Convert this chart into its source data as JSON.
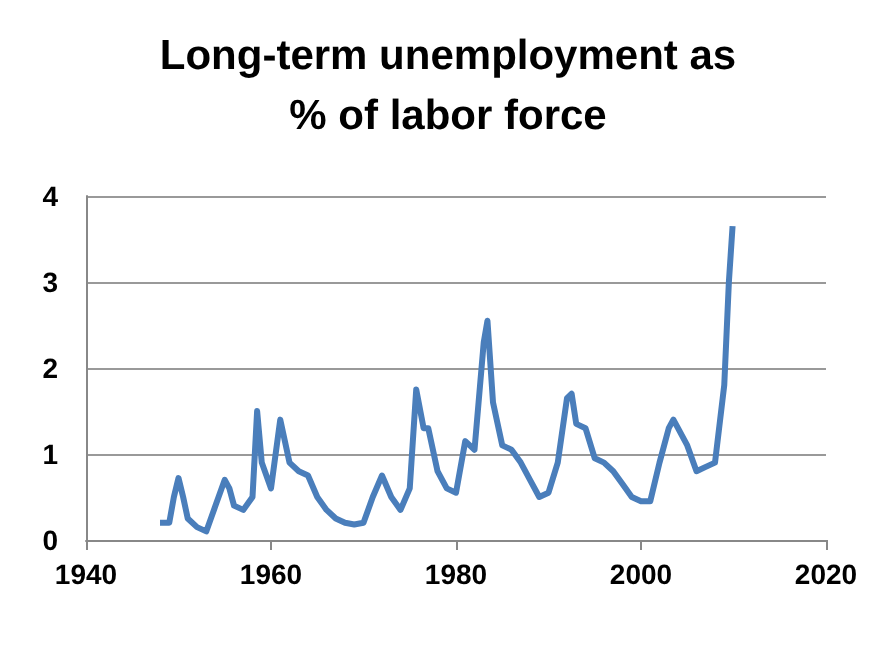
{
  "chart_data": {
    "type": "line",
    "title": "Long-term unemployment as\n% of labor force",
    "x": [
      1948,
      1949,
      1949.5,
      1950,
      1950.5,
      1951,
      1952,
      1953,
      1954,
      1955,
      1955.5,
      1956,
      1957,
      1958,
      1958.5,
      1959,
      1960,
      1961,
      1962,
      1963,
      1964,
      1965,
      1966,
      1967,
      1968,
      1969,
      1970,
      1971,
      1972,
      1973,
      1974,
      1975,
      1975.7,
      1976.5,
      1977,
      1978,
      1979,
      1980,
      1981,
      1982,
      1983,
      1983.4,
      1984,
      1985,
      1986,
      1987,
      1988,
      1989,
      1990,
      1991,
      1992,
      1992.5,
      1993,
      1994,
      1995,
      1996,
      1997,
      1998,
      1999,
      2000,
      2001,
      2002,
      2003,
      2003.5,
      2004,
      2005,
      2006,
      2007,
      2008,
      2009,
      2009.5,
      2009.9
    ],
    "series": [
      {
        "color": "#4a7ebb",
        "values": [
          0.2,
          0.2,
          0.5,
          0.72,
          0.5,
          0.25,
          0.15,
          0.1,
          0.4,
          0.7,
          0.6,
          0.4,
          0.35,
          0.5,
          1.5,
          0.9,
          0.6,
          1.4,
          0.9,
          0.8,
          0.75,
          0.5,
          0.35,
          0.25,
          0.2,
          0.18,
          0.2,
          0.5,
          0.75,
          0.5,
          0.35,
          0.6,
          1.75,
          1.3,
          1.3,
          0.8,
          0.6,
          0.55,
          1.15,
          1.05,
          2.3,
          2.55,
          1.6,
          1.1,
          1.05,
          0.9,
          0.7,
          0.5,
          0.55,
          0.9,
          1.65,
          1.7,
          1.35,
          1.3,
          0.95,
          0.9,
          0.8,
          0.65,
          0.5,
          0.45,
          0.45,
          0.9,
          1.3,
          1.4,
          1.3,
          1.1,
          0.8,
          0.85,
          0.9,
          1.8,
          3.0,
          3.65
        ]
      }
    ],
    "xlim": [
      1940,
      2020
    ],
    "xticks": [
      1940,
      1960,
      1980,
      2000,
      2020
    ],
    "ylim": [
      0,
      4
    ],
    "yticks": [
      0,
      1,
      2,
      3,
      4
    ],
    "grid": "y",
    "legend": false,
    "marker": "none",
    "line_style": "solid"
  }
}
